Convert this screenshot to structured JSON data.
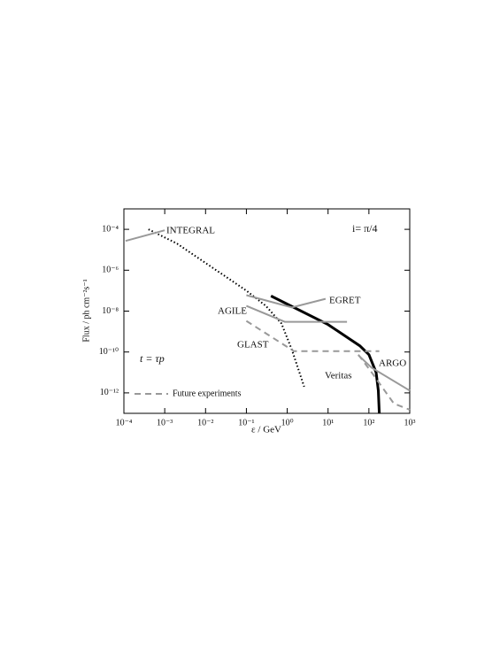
{
  "chart_data": {
    "type": "line",
    "xscale": "log",
    "yscale": "log",
    "xlabel": "ε / GeV",
    "ylabel": "Flux / ph cm⁻²s⁻¹",
    "xlim": [
      0.0001,
      1000
    ],
    "ylim": [
      1e-13,
      0.001
    ],
    "xticks": [
      {
        "value": 0.0001,
        "label": "10⁻⁴"
      },
      {
        "value": 0.001,
        "label": "10⁻³"
      },
      {
        "value": 0.01,
        "label": "10⁻²"
      },
      {
        "value": 0.1,
        "label": "10⁻¹"
      },
      {
        "value": 1,
        "label": "10⁰"
      },
      {
        "value": 10,
        "label": "10¹"
      },
      {
        "value": 100,
        "label": "10²"
      },
      {
        "value": 1000,
        "label": "10³"
      }
    ],
    "yticks": [
      {
        "value": 1e-12,
        "label": "10⁻¹²"
      },
      {
        "value": 1e-10,
        "label": "10⁻¹⁰"
      },
      {
        "value": 1e-08,
        "label": "10⁻⁸"
      },
      {
        "value": 1e-06,
        "label": "10⁻⁶"
      },
      {
        "value": 0.0001,
        "label": "10⁻⁴"
      }
    ],
    "annotations": [
      "i= π/4",
      "t = τp"
    ],
    "legend": {
      "label": "Future experiments",
      "line_style": "dashed",
      "color": "#999999"
    },
    "series": [
      {
        "color": "#000000",
        "line_style": "solid",
        "width": 3,
        "x": [
          0.4,
          10,
          60,
          100,
          150,
          170,
          180
        ],
        "values": [
          5.5e-08,
          2.2e-09,
          2e-10,
          7.4e-11,
          1e-11,
          1.3e-12,
          1e-13
        ]
      },
      {
        "color": "#000000",
        "line_style": "dotted",
        "width": 2,
        "x": [
          0.0004,
          0.002,
          0.1,
          0.3,
          0.72,
          1.3,
          2.6
        ],
        "values": [
          0.0001,
          2e-05,
          1e-07,
          1.8e-08,
          2.5e-09,
          1.3e-10,
          2e-12
        ]
      },
      {
        "name": "INTEGRAL",
        "color": "#999999",
        "line_style": "solid",
        "width": 2,
        "x": [
          0.00011,
          0.001
        ],
        "values": [
          2.7e-05,
          9e-05
        ]
      },
      {
        "name": "EGRET",
        "color": "#999999",
        "line_style": "solid",
        "width": 2,
        "x": [
          0.1,
          1.3,
          8.7
        ],
        "values": [
          6e-08,
          1.5e-08,
          4e-08
        ]
      },
      {
        "name": "AGILE",
        "color": "#999999",
        "line_style": "solid",
        "width": 2,
        "x": [
          0.1,
          0.87,
          29
        ],
        "values": [
          1.8e-08,
          3e-09,
          3e-09
        ]
      },
      {
        "name": "GLAST",
        "color": "#999999",
        "line_style": "dashed",
        "width": 2,
        "x": [
          0.1,
          1.45,
          180
        ],
        "values": [
          3.3e-09,
          1.1e-10,
          1.1e-10
        ]
      },
      {
        "name": "ARGO",
        "color": "#999999",
        "line_style": "dashed",
        "width": 2,
        "x": [
          55,
          117,
          410,
          1000
        ],
        "values": [
          7.4e-11,
          1e-11,
          3e-13,
          1.5e-13
        ]
      },
      {
        "name": "Veritas",
        "color": "#999999",
        "line_style": "solid",
        "width": 2,
        "x": [
          55,
          117,
          1000
        ],
        "values": [
          7e-11,
          1.7e-11,
          1.3e-12
        ]
      }
    ]
  }
}
